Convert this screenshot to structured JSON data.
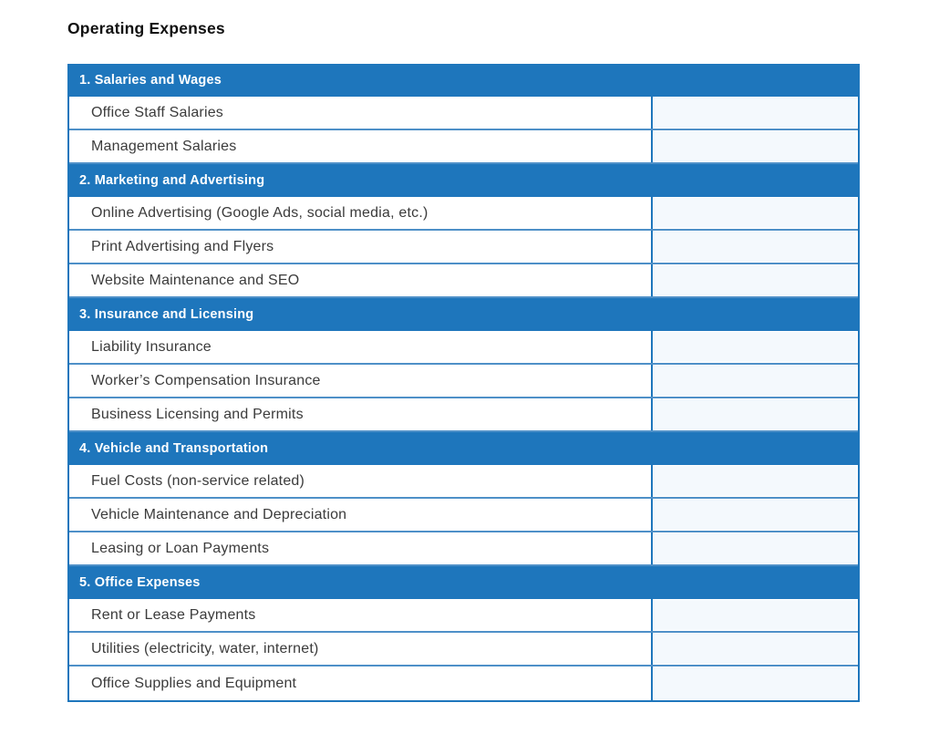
{
  "page_title": "Operating Expenses",
  "colors": {
    "accent": "#1E76BC",
    "row-line": "#4E90C8",
    "cell-fill": "#F4F9FD"
  },
  "table": {
    "sections": [
      {
        "header": "1. Salaries and Wages",
        "rows": [
          "Office Staff Salaries",
          "Management Salaries"
        ]
      },
      {
        "header": "2. Marketing and Advertising",
        "rows": [
          "Online Advertising (Google Ads, social media, etc.)",
          "Print Advertising and Flyers",
          "Website Maintenance and SEO"
        ]
      },
      {
        "header": "3. Insurance and Licensing",
        "rows": [
          "Liability Insurance",
          "Worker’s Compensation Insurance",
          "Business Licensing and Permits"
        ]
      },
      {
        "header": "4. Vehicle and Transportation",
        "rows": [
          "Fuel Costs (non-service related)",
          "Vehicle Maintenance and Depreciation",
          "Leasing or Loan Payments"
        ]
      },
      {
        "header": "5. Office Expenses",
        "rows": [
          "Rent or Lease Payments",
          "Utilities (electricity, water, internet)",
          "Office Supplies and Equipment"
        ]
      }
    ]
  }
}
